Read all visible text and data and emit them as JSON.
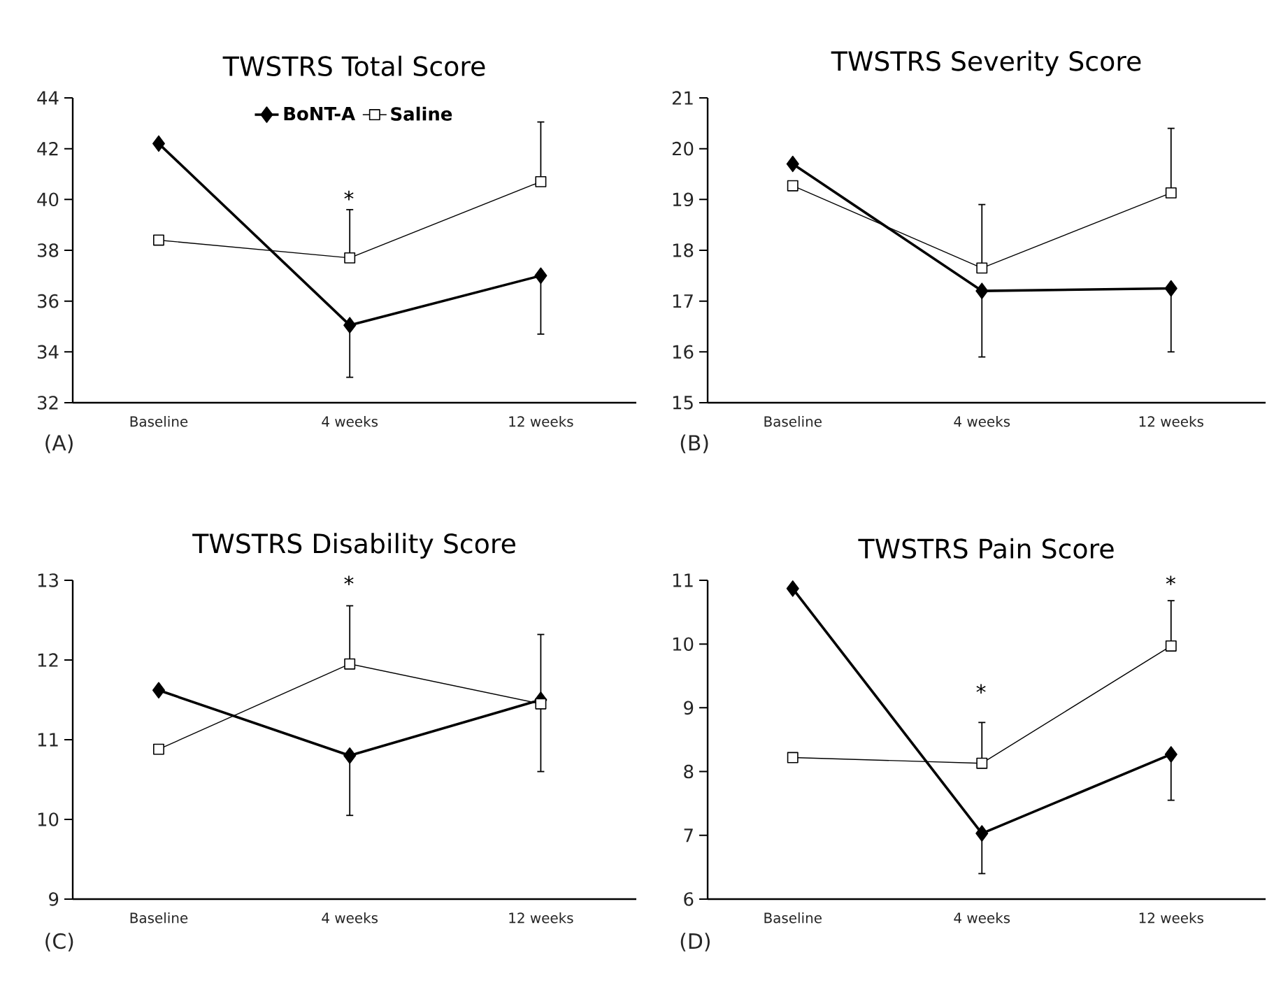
{
  "chart_data": [
    {
      "type": "line",
      "title": "TWSTRS Total Score",
      "categories": [
        "Baseline",
        "4 weeks",
        "12 weeks"
      ],
      "ylim": [
        32,
        44
      ],
      "yticks": [
        32,
        34,
        36,
        38,
        40,
        42,
        44
      ],
      "legend": "top",
      "grid": false,
      "series": [
        {
          "name": "BoNT-A",
          "color": "#000000",
          "marker": "diamond",
          "values": [
            42.2,
            35.05,
            37.0
          ],
          "errors": [
            null,
            [
              33.0,
              35.05
            ],
            [
              34.7,
              37.0
            ]
          ]
        },
        {
          "name": "Saline",
          "color": "#000000",
          "marker": "square",
          "values": [
            38.4,
            37.7,
            40.7
          ],
          "errors": [
            null,
            [
              37.7,
              39.6
            ],
            [
              40.7,
              43.05
            ]
          ]
        }
      ],
      "annotations": [
        "*",
        "(A)"
      ]
    },
    {
      "type": "line",
      "title": "TWSTRS Severity Score",
      "categories": [
        "Baseline",
        "4 weeks",
        "12 weeks"
      ],
      "ylim": [
        15,
        21
      ],
      "yticks": [
        15,
        16,
        17,
        18,
        19,
        20,
        21
      ],
      "grid": false,
      "series": [
        {
          "color": "#000000",
          "marker": "diamond",
          "values": [
            19.7,
            17.2,
            17.25
          ],
          "errors": [
            null,
            [
              15.9,
              17.2
            ],
            [
              16.0,
              17.25
            ]
          ]
        },
        {
          "color": "#000000",
          "marker": "square",
          "values": [
            19.27,
            17.65,
            19.13
          ],
          "errors": [
            null,
            [
              17.65,
              18.9
            ],
            [
              19.13,
              20.4
            ]
          ]
        }
      ],
      "annotations": [
        "(B)"
      ]
    },
    {
      "type": "line",
      "title": "TWSTRS Disability Score",
      "categories": [
        "Baseline",
        "4 weeks",
        "12 weeks"
      ],
      "ylim": [
        9,
        13
      ],
      "yticks": [
        9,
        10,
        11,
        12,
        13
      ],
      "grid": false,
      "series": [
        {
          "color": "#000000",
          "marker": "diamond",
          "values": [
            11.62,
            10.8,
            11.5
          ],
          "errors": [
            null,
            [
              10.05,
              10.8
            ],
            [
              10.6,
              11.5
            ]
          ]
        },
        {
          "color": "#000000",
          "marker": "square",
          "values": [
            10.88,
            11.95,
            11.45
          ],
          "errors": [
            null,
            [
              11.95,
              12.68
            ],
            [
              11.45,
              12.32
            ]
          ]
        }
      ],
      "annotations": [
        "*",
        "(C)"
      ]
    },
    {
      "type": "line",
      "title": "TWSTRS Pain Score",
      "categories": [
        "Baseline",
        "4 weeks",
        "12 weeks"
      ],
      "ylim": [
        6,
        11
      ],
      "yticks": [
        6,
        7,
        8,
        9,
        10,
        11
      ],
      "grid": false,
      "series": [
        {
          "color": "#000000",
          "marker": "diamond",
          "values": [
            10.87,
            7.03,
            8.27
          ],
          "errors": [
            null,
            [
              6.4,
              7.03
            ],
            [
              7.55,
              8.27
            ]
          ]
        },
        {
          "color": "#000000",
          "marker": "square",
          "values": [
            8.22,
            8.13,
            9.97
          ],
          "errors": [
            null,
            [
              8.13,
              8.77
            ],
            [
              9.97,
              10.68
            ]
          ]
        }
      ],
      "annotations": [
        "*",
        "*",
        "(D)"
      ]
    }
  ]
}
